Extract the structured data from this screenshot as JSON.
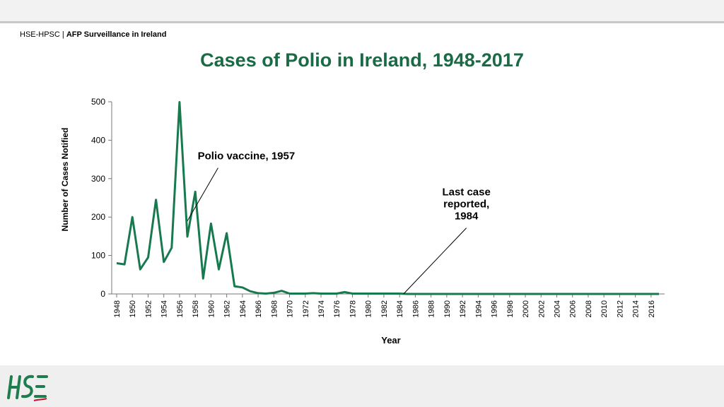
{
  "header": {
    "org": "HSE-HPSC",
    "separator": " | ",
    "section": "AFP Surveillance in Ireland"
  },
  "colors": {
    "title": "#1a6b45",
    "series": "#177a4e",
    "logo_green": "#1e7d4f",
    "logo_red": "#c8102e"
  },
  "logo": {
    "name": "hse-logo"
  },
  "chart_data": {
    "type": "line",
    "title": "Cases of Polio in Ireland, 1948-2017",
    "xlabel": "Year",
    "ylabel": "Number of Cases Notified",
    "ylim": [
      0,
      500
    ],
    "yticks": [
      0,
      100,
      200,
      300,
      400,
      500
    ],
    "xticks": [
      1948,
      1950,
      1952,
      1954,
      1956,
      1958,
      1960,
      1962,
      1964,
      1966,
      1968,
      1970,
      1972,
      1974,
      1976,
      1978,
      1980,
      1982,
      1984,
      1986,
      1988,
      1990,
      1992,
      1994,
      1996,
      1998,
      2000,
      2002,
      2004,
      2006,
      2008,
      2010,
      2012,
      2014,
      2016
    ],
    "grid": false,
    "series": [
      {
        "x": [
          1948,
          1949,
          1950,
          1951,
          1952,
          1953,
          1954,
          1955,
          1956,
          1957,
          1958,
          1959,
          1960,
          1961,
          1962,
          1963,
          1964,
          1965,
          1966,
          1967,
          1968,
          1969,
          1970,
          1971,
          1972,
          1973,
          1974,
          1975,
          1976,
          1977,
          1978,
          1979,
          1980,
          1981,
          1982,
          1983,
          1984,
          1985,
          1986,
          1987,
          1988,
          1989,
          1990,
          1991,
          1992,
          1993,
          1994,
          1995,
          1996,
          1997,
          1998,
          1999,
          2000,
          2001,
          2002,
          2003,
          2004,
          2005,
          2006,
          2007,
          2008,
          2009,
          2010,
          2011,
          2012,
          2013,
          2014,
          2015,
          2016,
          2017
        ],
        "values": [
          80,
          77,
          200,
          64,
          95,
          245,
          83,
          120,
          499,
          149,
          266,
          40,
          183,
          64,
          158,
          20,
          17,
          7,
          2,
          1,
          3,
          8,
          1,
          1,
          1,
          2,
          1,
          1,
          1,
          5,
          1,
          1,
          1,
          1,
          1,
          1,
          1,
          0,
          0,
          0,
          0,
          0,
          0,
          0,
          0,
          0,
          0,
          0,
          0,
          0,
          0,
          0,
          0,
          0,
          0,
          0,
          0,
          0,
          0,
          0,
          0,
          0,
          0,
          0,
          0,
          0,
          0,
          0,
          0,
          0
        ]
      }
    ],
    "annotations": [
      {
        "lines": [
          "Polio vaccine, 1957"
        ],
        "year": 1957,
        "value": 190,
        "text_year": 1964.5,
        "text_value": 350
      },
      {
        "lines": [
          "Last case",
          "reported,",
          "1984"
        ],
        "year": 1984.5,
        "value": 0,
        "text_year": 1992.5,
        "text_value": 225
      }
    ]
  }
}
